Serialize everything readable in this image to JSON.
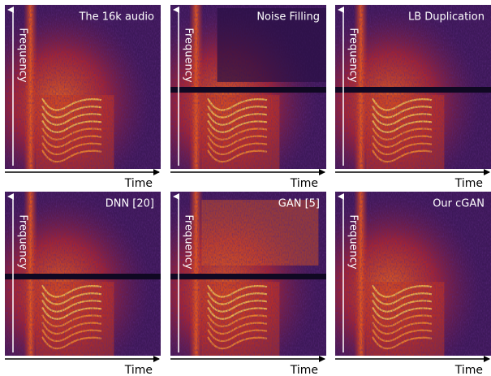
{
  "panels": [
    {
      "title": "The 16k audio",
      "y_label": "Frequency",
      "x_label": "Time"
    },
    {
      "title": "Noise Filling",
      "y_label": "Frequency",
      "x_label": "Time"
    },
    {
      "title": "LB Duplication",
      "y_label": "Frequency",
      "x_label": "Time"
    },
    {
      "title": "DNN [20]",
      "y_label": "Frequency",
      "x_label": "Time"
    },
    {
      "title": "GAN [5]",
      "y_label": "Frequency",
      "x_label": "Time"
    },
    {
      "title": "Our cGAN",
      "y_label": "Frequency",
      "x_label": "Time"
    }
  ]
}
